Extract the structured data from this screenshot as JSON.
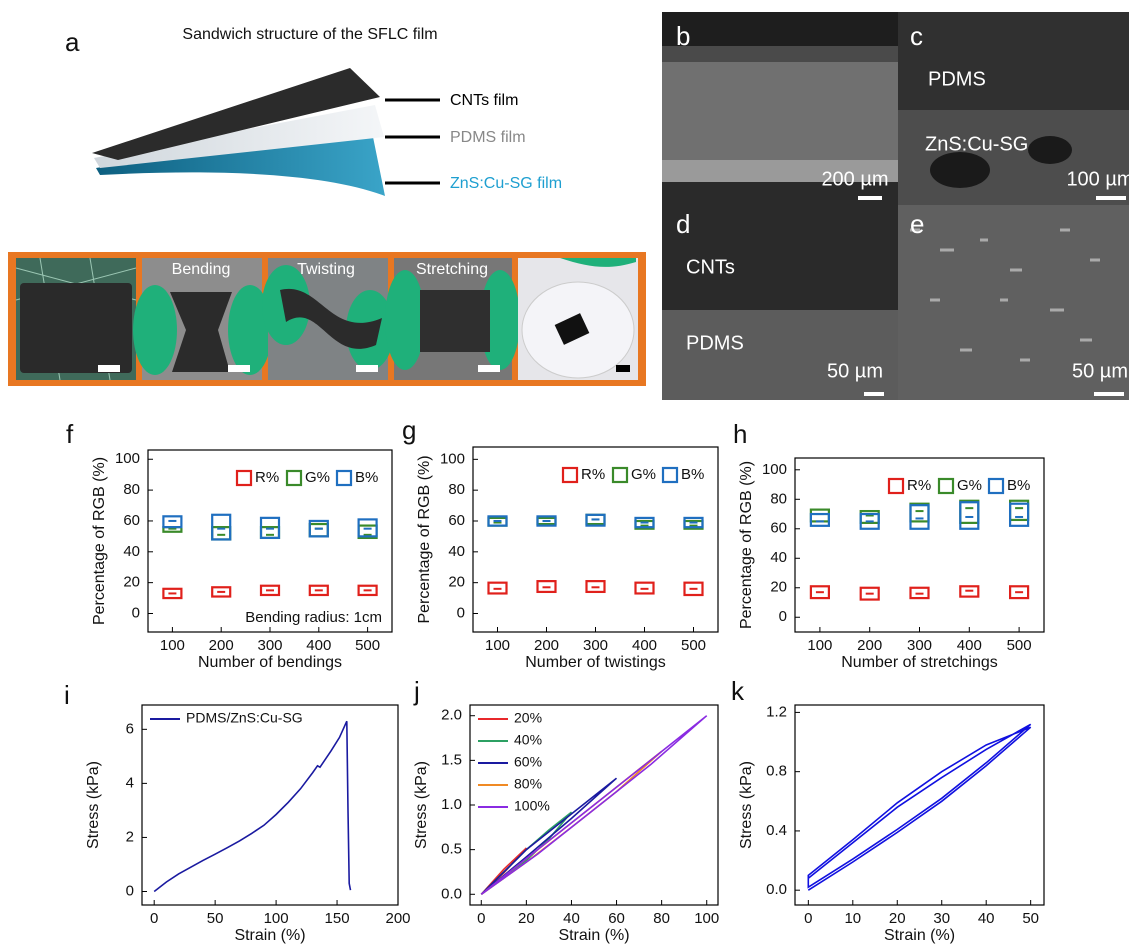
{
  "panel_a": {
    "label": "a",
    "title": "Sandwich structure of the SFLC film",
    "layers": [
      "CNTs film",
      "PDMS film",
      "ZnS:Cu-SG film"
    ],
    "photo_labels": [
      "Bending",
      "Twisting",
      "Stretching"
    ]
  },
  "sem_panels": [
    {
      "label": "b",
      "texts": [],
      "scale": "200 µm"
    },
    {
      "label": "c",
      "texts": [
        "PDMS",
        "ZnS:Cu-SG"
      ],
      "scale": "100 µm"
    },
    {
      "label": "d",
      "texts": [
        "CNTs",
        "PDMS"
      ],
      "scale": "50 µm"
    },
    {
      "label": "e",
      "texts": [],
      "scale": "50 µm"
    }
  ],
  "chart_data": [
    {
      "type": "box",
      "label": "f",
      "x_label": "Number of bendings",
      "y_label": "Percentage of RGB (%)",
      "categories": [
        "100",
        "200",
        "300",
        "400",
        "500"
      ],
      "ylim": [
        -12,
        106
      ],
      "yticks": [
        0,
        20,
        40,
        60,
        80,
        100
      ],
      "legend": "upper right",
      "annotation": "Bending radius: 1cm",
      "series": [
        {
          "name": "R%",
          "color": "#e0201b",
          "values": [
            13,
            14,
            15,
            15,
            15
          ],
          "low": [
            10,
            11,
            12,
            12,
            12
          ],
          "high": [
            16,
            17,
            18,
            18,
            18
          ]
        },
        {
          "name": "G%",
          "color": "#3a8a2a",
          "values": [
            55,
            51,
            51,
            55,
            51
          ],
          "low": [
            53,
            48,
            49,
            50,
            49
          ],
          "high": [
            56,
            56,
            56,
            58,
            57
          ]
        },
        {
          "name": "B%",
          "color": "#1f6fc0",
          "values": [
            60,
            55,
            55,
            55,
            55
          ],
          "low": [
            56,
            48,
            49,
            50,
            50
          ],
          "high": [
            63,
            64,
            62,
            60,
            61
          ]
        }
      ]
    },
    {
      "type": "box",
      "label": "g",
      "x_label": "Number of twistings",
      "y_label": "Percentage of RGB (%)",
      "categories": [
        "100",
        "200",
        "300",
        "400",
        "500"
      ],
      "ylim": [
        -12,
        108
      ],
      "yticks": [
        0,
        20,
        40,
        60,
        80,
        100
      ],
      "legend": "upper right",
      "series": [
        {
          "name": "R%",
          "color": "#e0201b",
          "values": [
            16,
            17,
            17,
            16,
            16
          ],
          "low": [
            13,
            14,
            14,
            13,
            12
          ],
          "high": [
            20,
            21,
            21,
            20,
            20
          ]
        },
        {
          "name": "G%",
          "color": "#3a8a2a",
          "values": [
            59,
            60,
            61,
            57,
            57
          ],
          "low": [
            57,
            58,
            58,
            55,
            55
          ],
          "high": [
            62,
            62,
            64,
            60,
            60
          ]
        },
        {
          "name": "B%",
          "color": "#1f6fc0",
          "values": [
            60,
            60,
            61,
            59,
            59
          ],
          "low": [
            57,
            57,
            57,
            56,
            56
          ],
          "high": [
            63,
            63,
            64,
            62,
            62
          ]
        }
      ]
    },
    {
      "type": "box",
      "label": "h",
      "x_label": "Number of stretchings",
      "y_label": "Percentage of RGB (%)",
      "categories": [
        "100",
        "200",
        "300",
        "400",
        "500"
      ],
      "ylim": [
        -10,
        108
      ],
      "yticks": [
        0,
        20,
        40,
        60,
        80,
        100
      ],
      "legend": "upper right",
      "series": [
        {
          "name": "R%",
          "color": "#e0201b",
          "values": [
            17,
            16,
            16,
            18,
            17
          ],
          "low": [
            13,
            12,
            13,
            14,
            13
          ],
          "high": [
            21,
            20,
            20,
            21,
            21
          ]
        },
        {
          "name": "G%",
          "color": "#3a8a2a",
          "values": [
            70,
            69,
            72,
            74,
            74
          ],
          "low": [
            65,
            64,
            65,
            64,
            66
          ],
          "high": [
            73,
            72,
            77,
            79,
            79
          ]
        },
        {
          "name": "B%",
          "color": "#1f6fc0",
          "values": [
            65,
            65,
            67,
            68,
            68
          ],
          "low": [
            62,
            60,
            60,
            60,
            62
          ],
          "high": [
            70,
            70,
            76,
            78,
            77
          ]
        }
      ]
    },
    {
      "type": "line",
      "label": "i",
      "x_label": "Strain (%)",
      "y_label": "Stress (kPa)",
      "xlim": [
        -10,
        200
      ],
      "xticks": [
        0,
        50,
        100,
        150,
        200
      ],
      "ylim": [
        -0.5,
        6.9
      ],
      "yticks": [
        0,
        2,
        4,
        6
      ],
      "legend": "upper left",
      "series": [
        {
          "name": "PDMS/ZnS:Cu-SG",
          "color": "#1a1aa0",
          "x": [
            0,
            10,
            20,
            30,
            40,
            50,
            60,
            70,
            80,
            90,
            100,
            110,
            120,
            130,
            134,
            136,
            145,
            152,
            158,
            159,
            160,
            161
          ],
          "values": [
            0,
            0.35,
            0.65,
            0.9,
            1.15,
            1.38,
            1.62,
            1.87,
            2.15,
            2.45,
            2.85,
            3.3,
            3.8,
            4.4,
            4.65,
            4.6,
            5.2,
            5.7,
            6.3,
            3.0,
            0.3,
            0.05
          ]
        }
      ]
    },
    {
      "type": "line",
      "label": "j",
      "x_label": "Strain (%)",
      "y_label": "Stress (kPa)",
      "xlim": [
        -5,
        105
      ],
      "xticks": [
        0,
        20,
        40,
        60,
        80,
        100
      ],
      "ylim": [
        -0.12,
        2.12
      ],
      "yticks": [
        {
          "value": 0,
          "label": "0.0"
        },
        0.5,
        {
          "value": 1,
          "label": "1.0"
        },
        1.5,
        {
          "value": 2,
          "label": "2.0"
        }
      ],
      "legend": "upper left",
      "series": [
        {
          "name": "20%",
          "color": "#e8282b",
          "x": [
            0,
            10,
            20,
            10,
            0
          ],
          "values": [
            0,
            0.28,
            0.52,
            0.24,
            0
          ]
        },
        {
          "name": "40%",
          "color": "#2ca063",
          "x": [
            0,
            10,
            20,
            30,
            40,
            30,
            20,
            10,
            0
          ],
          "values": [
            0,
            0.25,
            0.5,
            0.72,
            0.92,
            0.62,
            0.38,
            0.18,
            0
          ]
        },
        {
          "name": "60%",
          "color": "#1a1aa0",
          "x": [
            0,
            20,
            40,
            60,
            40,
            20,
            0
          ],
          "values": [
            0,
            0.5,
            0.9,
            1.3,
            0.85,
            0.42,
            0
          ]
        },
        {
          "name": "80%",
          "color": "#f08a24",
          "x": [
            0,
            20,
            40,
            60,
            80,
            60,
            40,
            20,
            0
          ],
          "values": [
            0,
            0.4,
            0.8,
            1.2,
            1.6,
            1.15,
            0.75,
            0.36,
            0
          ]
        },
        {
          "name": "100%",
          "color": "#8a2be2",
          "x": [
            0,
            25,
            50,
            75,
            100,
            75,
            50,
            25,
            0
          ],
          "values": [
            0,
            0.5,
            1.0,
            1.5,
            2.0,
            1.45,
            0.95,
            0.45,
            0
          ]
        }
      ]
    },
    {
      "type": "line",
      "label": "k",
      "x_label": "Strain (%)",
      "y_label": "Stress (kPa)",
      "xlim": [
        -3,
        53
      ],
      "xticks": [
        0,
        10,
        20,
        30,
        40,
        50
      ],
      "ylim": [
        -0.1,
        1.25
      ],
      "yticks": [
        {
          "value": 0,
          "label": "0.0"
        },
        0.4,
        0.8,
        1.2
      ],
      "series": [
        {
          "color": "#1010e0",
          "x": [
            0,
            10,
            20,
            30,
            40,
            50,
            40,
            30,
            20,
            10,
            0,
            0,
            10,
            20,
            30,
            40,
            50,
            40,
            30,
            20,
            10,
            0
          ],
          "values": [
            0.08,
            0.32,
            0.56,
            0.76,
            0.95,
            1.12,
            0.86,
            0.62,
            0.41,
            0.21,
            0.02,
            0.1,
            0.34,
            0.59,
            0.8,
            0.98,
            1.1,
            0.84,
            0.6,
            0.39,
            0.19,
            0.0
          ]
        }
      ]
    }
  ]
}
